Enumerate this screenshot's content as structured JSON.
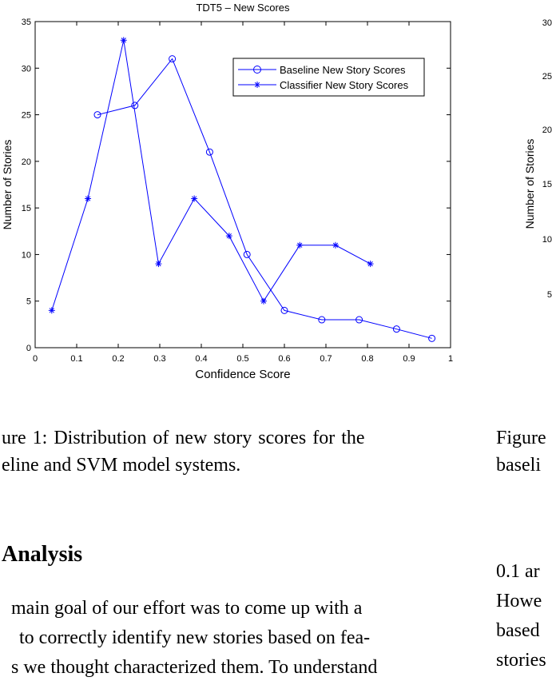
{
  "chart_data": [
    {
      "type": "line",
      "title": "TDT5 – New Scores",
      "xlabel": "Confidence Score",
      "ylabel": "Number of Stories",
      "xlim": [
        0,
        1
      ],
      "ylim": [
        0,
        35
      ],
      "xticks": [
        "0",
        "0.1",
        "0.2",
        "0.3",
        "0.4",
        "0.5",
        "0.6",
        "0.7",
        "0.8",
        "0.9",
        "1"
      ],
      "yticks": [
        "0",
        "5",
        "10",
        "15",
        "20",
        "25",
        "30",
        "35"
      ],
      "legend_position": "top-right",
      "color": "#0000ff",
      "series": [
        {
          "name": "Baseline New Story Scores",
          "marker": "circle",
          "x": [
            0.15,
            0.24,
            0.33,
            0.42,
            0.51,
            0.6,
            0.69,
            0.78,
            0.87,
            0.955
          ],
          "y": [
            25,
            26,
            31,
            21,
            10,
            4,
            3,
            3,
            2,
            1
          ]
        },
        {
          "name": "Classifier New Story Scores",
          "marker": "asterisk",
          "x": [
            0.04,
            0.127,
            0.213,
            0.297,
            0.383,
            0.467,
            0.55,
            0.637,
            0.723,
            0.807
          ],
          "y": [
            4,
            16,
            33,
            9,
            16,
            12,
            5,
            11,
            11,
            9
          ]
        }
      ]
    },
    {
      "type": "line",
      "ylabel": "Number of Stories",
      "yticks": [
        "5",
        "10",
        "15",
        "20",
        "25",
        "30"
      ]
    }
  ],
  "captions": {
    "left": [
      "ure 1:  Distribution  of  new  story  scores  for  the",
      "eline and SVM model systems."
    ],
    "right": [
      "Figure",
      "baseli"
    ]
  },
  "heading": "Analysis",
  "body_left": [
    "main goal of our effort was to come up with a",
    "to correctly identify new stories based on fea-",
    "s we thought characterized them. To understand"
  ],
  "body_right": [
    "0.1 ar",
    "Howe",
    "based",
    "stories"
  ]
}
